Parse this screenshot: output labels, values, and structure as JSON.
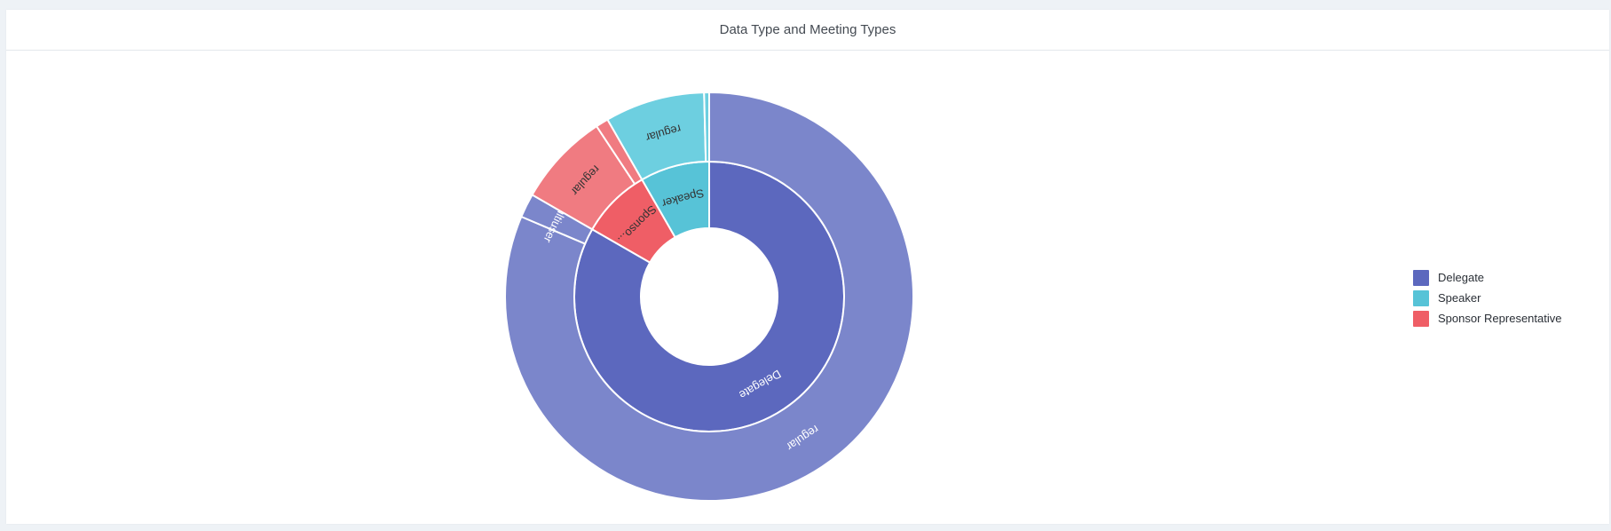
{
  "card": {
    "title": "Data Type and Meeting Types"
  },
  "legend": [
    {
      "label": "Delegate",
      "color": "#5c68be"
    },
    {
      "label": "Speaker",
      "color": "#57c3d7"
    },
    {
      "label": "Sponsor Representative",
      "color": "#ef5e66"
    }
  ],
  "chart_data": {
    "type": "sunburst",
    "title": "Data Type and Meeting Types",
    "legend_position": "right",
    "inner": [
      {
        "label": "Delegate",
        "value": 83.3,
        "color": "#5c68be"
      },
      {
        "label": "Speaker",
        "value": 8.3,
        "color": "#57c3d7"
      },
      {
        "label": "Sponsor Representative",
        "shown_label": "Sponso...",
        "value": 8.4,
        "color": "#ef5e66"
      }
    ],
    "outer": [
      {
        "parent": "Delegate",
        "label": "regular",
        "value": 81.4,
        "color": "#7b86cb"
      },
      {
        "parent": "Delegate",
        "label": "multiuser",
        "value": 1.9,
        "color": "#7b86cb"
      },
      {
        "parent": "Sponsor Representative",
        "label": "regular",
        "value": 7.4,
        "color": "#f07b81"
      },
      {
        "parent": "Sponsor Representative",
        "label": "",
        "value": 1.0,
        "color": "#f07b81"
      },
      {
        "parent": "Speaker",
        "label": "regular",
        "value": 7.9,
        "color": "#6dcfe0"
      },
      {
        "parent": "Speaker",
        "label": "",
        "value": 0.4,
        "color": "#6dcfe0"
      }
    ]
  }
}
